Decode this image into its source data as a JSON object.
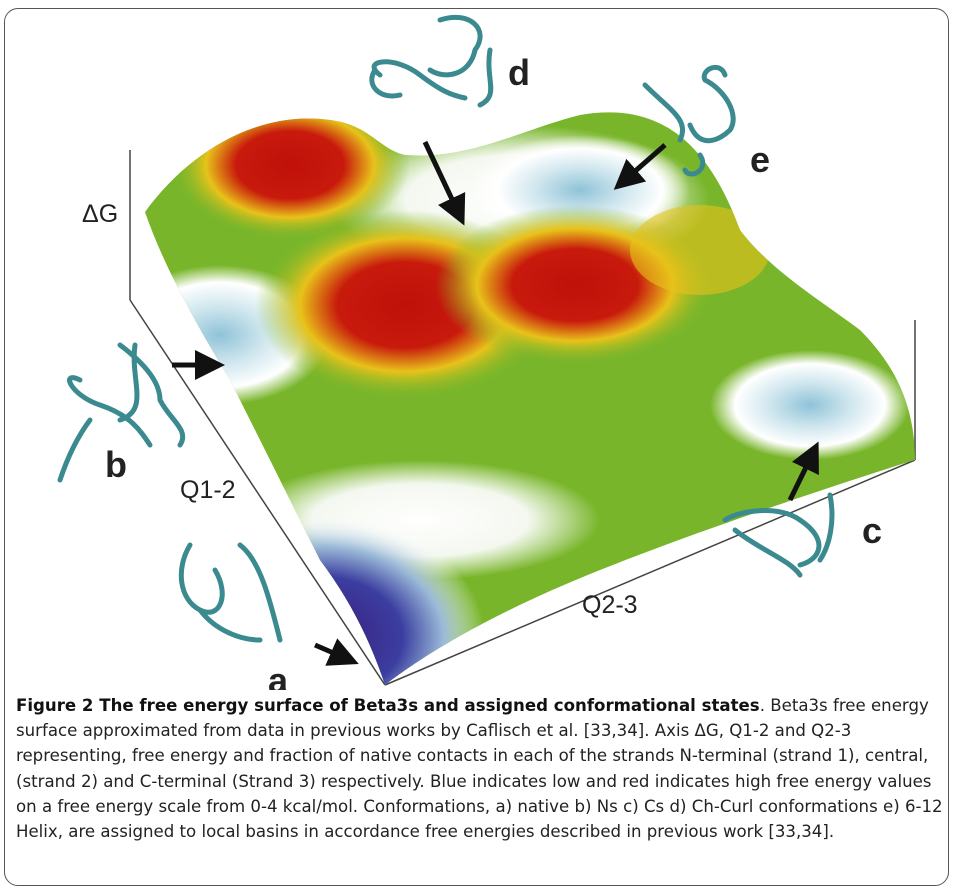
{
  "figure": {
    "axis_labels": {
      "dg": "ΔG",
      "q12": "Q1-2",
      "q23": "Q2-3"
    },
    "states": {
      "a": "a",
      "b": "b",
      "c": "c",
      "d": "d",
      "e": "e"
    }
  },
  "caption": {
    "title": "Figure 2 The free energy surface of Beta3s and assigned conformational states",
    "text": ". Beta3s free energy surface approximated from data in previous works by Caflisch et al. [33,34]. Axis ΔG, Q1-2 and Q2-3 representing, free energy and fraction of native contacts in each of the strands N-terminal (strand 1), central, (strand 2) and C-terminal (Strand 3) respectively. Blue indicates low and red indicates high free energy values on a free energy scale from 0-4 kcal/mol. Conformations, a) native b) Ns c) Cs d) Ch-Curl conformations e) 6-12 Helix, are assigned to local basins in accordance free energies described in previous work [33,34]."
  }
}
